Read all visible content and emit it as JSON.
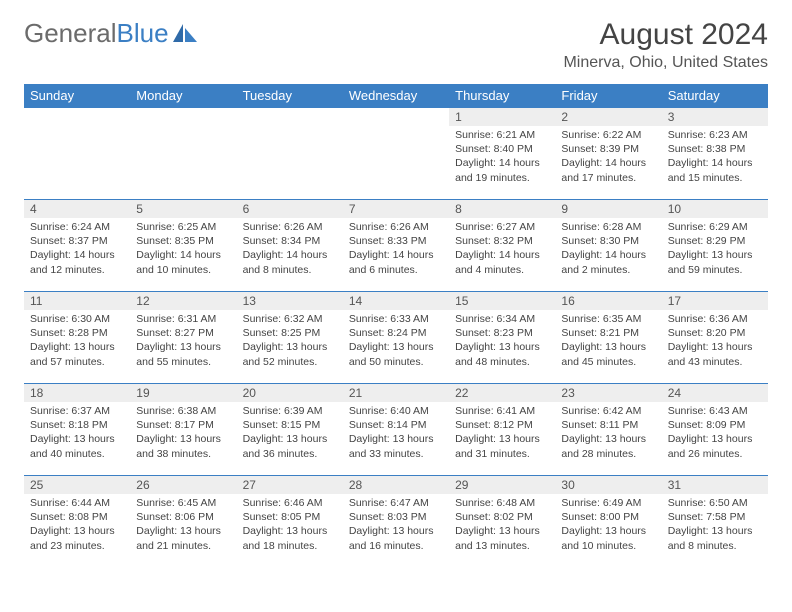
{
  "logo": {
    "text_gray": "General",
    "text_blue": "Blue"
  },
  "header": {
    "month": "August 2024",
    "location": "Minerva, Ohio, United States"
  },
  "colors": {
    "header_bg": "#3b7fc4",
    "header_text": "#ffffff",
    "daynum_bg": "#eeeeee",
    "cell_border": "#3b7fc4",
    "body_text": "#444444",
    "page_bg": "#ffffff"
  },
  "dayNames": [
    "Sunday",
    "Monday",
    "Tuesday",
    "Wednesday",
    "Thursday",
    "Friday",
    "Saturday"
  ],
  "weeks": [
    [
      null,
      null,
      null,
      null,
      {
        "n": "1",
        "sunrise": "Sunrise: 6:21 AM",
        "sunset": "Sunset: 8:40 PM",
        "daylight": "Daylight: 14 hours and 19 minutes."
      },
      {
        "n": "2",
        "sunrise": "Sunrise: 6:22 AM",
        "sunset": "Sunset: 8:39 PM",
        "daylight": "Daylight: 14 hours and 17 minutes."
      },
      {
        "n": "3",
        "sunrise": "Sunrise: 6:23 AM",
        "sunset": "Sunset: 8:38 PM",
        "daylight": "Daylight: 14 hours and 15 minutes."
      }
    ],
    [
      {
        "n": "4",
        "sunrise": "Sunrise: 6:24 AM",
        "sunset": "Sunset: 8:37 PM",
        "daylight": "Daylight: 14 hours and 12 minutes."
      },
      {
        "n": "5",
        "sunrise": "Sunrise: 6:25 AM",
        "sunset": "Sunset: 8:35 PM",
        "daylight": "Daylight: 14 hours and 10 minutes."
      },
      {
        "n": "6",
        "sunrise": "Sunrise: 6:26 AM",
        "sunset": "Sunset: 8:34 PM",
        "daylight": "Daylight: 14 hours and 8 minutes."
      },
      {
        "n": "7",
        "sunrise": "Sunrise: 6:26 AM",
        "sunset": "Sunset: 8:33 PM",
        "daylight": "Daylight: 14 hours and 6 minutes."
      },
      {
        "n": "8",
        "sunrise": "Sunrise: 6:27 AM",
        "sunset": "Sunset: 8:32 PM",
        "daylight": "Daylight: 14 hours and 4 minutes."
      },
      {
        "n": "9",
        "sunrise": "Sunrise: 6:28 AM",
        "sunset": "Sunset: 8:30 PM",
        "daylight": "Daylight: 14 hours and 2 minutes."
      },
      {
        "n": "10",
        "sunrise": "Sunrise: 6:29 AM",
        "sunset": "Sunset: 8:29 PM",
        "daylight": "Daylight: 13 hours and 59 minutes."
      }
    ],
    [
      {
        "n": "11",
        "sunrise": "Sunrise: 6:30 AM",
        "sunset": "Sunset: 8:28 PM",
        "daylight": "Daylight: 13 hours and 57 minutes."
      },
      {
        "n": "12",
        "sunrise": "Sunrise: 6:31 AM",
        "sunset": "Sunset: 8:27 PM",
        "daylight": "Daylight: 13 hours and 55 minutes."
      },
      {
        "n": "13",
        "sunrise": "Sunrise: 6:32 AM",
        "sunset": "Sunset: 8:25 PM",
        "daylight": "Daylight: 13 hours and 52 minutes."
      },
      {
        "n": "14",
        "sunrise": "Sunrise: 6:33 AM",
        "sunset": "Sunset: 8:24 PM",
        "daylight": "Daylight: 13 hours and 50 minutes."
      },
      {
        "n": "15",
        "sunrise": "Sunrise: 6:34 AM",
        "sunset": "Sunset: 8:23 PM",
        "daylight": "Daylight: 13 hours and 48 minutes."
      },
      {
        "n": "16",
        "sunrise": "Sunrise: 6:35 AM",
        "sunset": "Sunset: 8:21 PM",
        "daylight": "Daylight: 13 hours and 45 minutes."
      },
      {
        "n": "17",
        "sunrise": "Sunrise: 6:36 AM",
        "sunset": "Sunset: 8:20 PM",
        "daylight": "Daylight: 13 hours and 43 minutes."
      }
    ],
    [
      {
        "n": "18",
        "sunrise": "Sunrise: 6:37 AM",
        "sunset": "Sunset: 8:18 PM",
        "daylight": "Daylight: 13 hours and 40 minutes."
      },
      {
        "n": "19",
        "sunrise": "Sunrise: 6:38 AM",
        "sunset": "Sunset: 8:17 PM",
        "daylight": "Daylight: 13 hours and 38 minutes."
      },
      {
        "n": "20",
        "sunrise": "Sunrise: 6:39 AM",
        "sunset": "Sunset: 8:15 PM",
        "daylight": "Daylight: 13 hours and 36 minutes."
      },
      {
        "n": "21",
        "sunrise": "Sunrise: 6:40 AM",
        "sunset": "Sunset: 8:14 PM",
        "daylight": "Daylight: 13 hours and 33 minutes."
      },
      {
        "n": "22",
        "sunrise": "Sunrise: 6:41 AM",
        "sunset": "Sunset: 8:12 PM",
        "daylight": "Daylight: 13 hours and 31 minutes."
      },
      {
        "n": "23",
        "sunrise": "Sunrise: 6:42 AM",
        "sunset": "Sunset: 8:11 PM",
        "daylight": "Daylight: 13 hours and 28 minutes."
      },
      {
        "n": "24",
        "sunrise": "Sunrise: 6:43 AM",
        "sunset": "Sunset: 8:09 PM",
        "daylight": "Daylight: 13 hours and 26 minutes."
      }
    ],
    [
      {
        "n": "25",
        "sunrise": "Sunrise: 6:44 AM",
        "sunset": "Sunset: 8:08 PM",
        "daylight": "Daylight: 13 hours and 23 minutes."
      },
      {
        "n": "26",
        "sunrise": "Sunrise: 6:45 AM",
        "sunset": "Sunset: 8:06 PM",
        "daylight": "Daylight: 13 hours and 21 minutes."
      },
      {
        "n": "27",
        "sunrise": "Sunrise: 6:46 AM",
        "sunset": "Sunset: 8:05 PM",
        "daylight": "Daylight: 13 hours and 18 minutes."
      },
      {
        "n": "28",
        "sunrise": "Sunrise: 6:47 AM",
        "sunset": "Sunset: 8:03 PM",
        "daylight": "Daylight: 13 hours and 16 minutes."
      },
      {
        "n": "29",
        "sunrise": "Sunrise: 6:48 AM",
        "sunset": "Sunset: 8:02 PM",
        "daylight": "Daylight: 13 hours and 13 minutes."
      },
      {
        "n": "30",
        "sunrise": "Sunrise: 6:49 AM",
        "sunset": "Sunset: 8:00 PM",
        "daylight": "Daylight: 13 hours and 10 minutes."
      },
      {
        "n": "31",
        "sunrise": "Sunrise: 6:50 AM",
        "sunset": "Sunset: 7:58 PM",
        "daylight": "Daylight: 13 hours and 8 minutes."
      }
    ]
  ]
}
